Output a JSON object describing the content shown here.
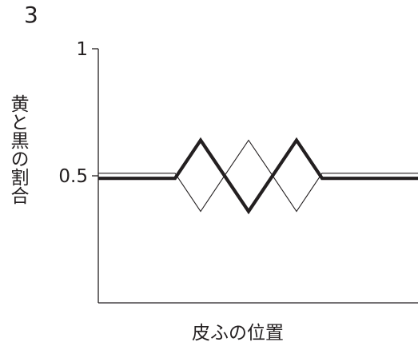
{
  "figure_number": "3",
  "chart_data": {
    "type": "line",
    "ylabel": "黄と黒の割合",
    "xlabel": "皮ふの位置",
    "ylim": [
      0,
      1
    ],
    "yticks": [
      {
        "value": 1,
        "label": "1"
      },
      {
        "value": 0.5,
        "label": "0.5"
      }
    ],
    "xlim": [
      0,
      10
    ],
    "series": [
      {
        "style": "thick-black",
        "points": [
          [
            0,
            0.49
          ],
          [
            2.4,
            0.49
          ],
          [
            3.2,
            0.64
          ],
          [
            4.7,
            0.36
          ],
          [
            6.2,
            0.64
          ],
          [
            7.0,
            0.49
          ],
          [
            10,
            0.49
          ]
        ]
      },
      {
        "style": "thin-black",
        "points": [
          [
            0,
            0.51
          ],
          [
            2.4,
            0.51
          ],
          [
            3.2,
            0.36
          ],
          [
            4.0,
            0.51
          ],
          [
            4.7,
            0.64
          ],
          [
            5.4,
            0.51
          ],
          [
            6.2,
            0.36
          ],
          [
            7.0,
            0.51
          ],
          [
            10,
            0.51
          ]
        ]
      }
    ],
    "grid": false
  }
}
